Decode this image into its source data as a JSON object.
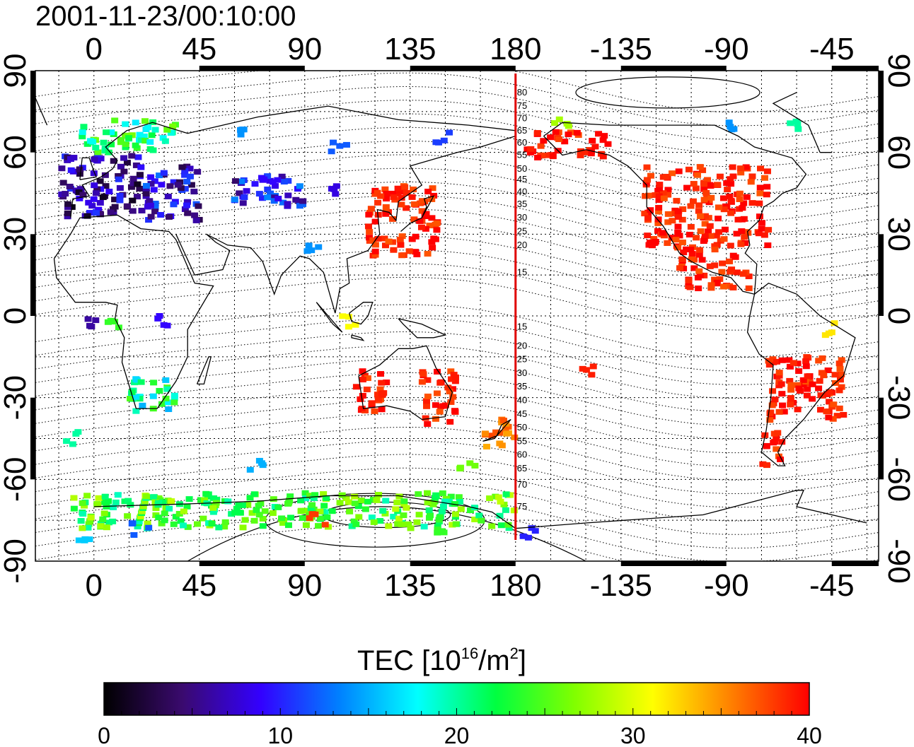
{
  "title": "2001-11-23/00:10:00",
  "map": {
    "lon_ticks_top": [
      "0",
      "45",
      "90",
      "135",
      "180",
      "-135",
      "-90",
      "-45"
    ],
    "lon_ticks_bottom": [
      "0",
      "45",
      "90",
      "135",
      "180",
      "-135",
      "-90",
      "-45"
    ],
    "lat_ticks_left": [
      "90",
      "60",
      "30",
      "0",
      "-30",
      "-60",
      "-90"
    ],
    "lat_ticks_right": [
      "90",
      "60",
      "30",
      "0",
      "-30",
      "-60",
      "-90"
    ],
    "meridian_line": {
      "longitude": 180,
      "color": "#e00000"
    },
    "contour_labels_north": [
      "80",
      "75",
      "70",
      "65",
      "60",
      "55",
      "50",
      "45",
      "40",
      "35",
      "30",
      "25",
      "20",
      "15"
    ],
    "contour_labels_south": [
      "15",
      "20",
      "25",
      "30",
      "35",
      "40",
      "45",
      "50",
      "55",
      "60",
      "65",
      "70",
      "75"
    ]
  },
  "colorbar": {
    "title_main": "TEC  [10",
    "title_sup1": "16",
    "title_mid": "/m",
    "title_sup2": "2",
    "title_end": "]",
    "min": 0,
    "max": 40,
    "tick_labels": [
      "0",
      "10",
      "20",
      "30",
      "40"
    ],
    "stops": [
      "#000000",
      "#3a0a6e",
      "#3300ff",
      "#0080ff",
      "#00ffff",
      "#00ff40",
      "#80ff00",
      "#ffff00",
      "#ff8000",
      "#ff0000"
    ]
  },
  "tec_regions": [
    {
      "name": "europe-west",
      "lon": [
        -14,
        20
      ],
      "lat": [
        36,
        60
      ],
      "value": 6
    },
    {
      "name": "europe-north",
      "lon": [
        -5,
        35
      ],
      "lat": [
        60,
        72
      ],
      "value": 22
    },
    {
      "name": "eastern-europe",
      "lon": [
        20,
        45
      ],
      "lat": [
        35,
        55
      ],
      "value": 8
    },
    {
      "name": "central-asia",
      "lon": [
        60,
        90
      ],
      "lat": [
        40,
        52
      ],
      "value": 9
    },
    {
      "name": "japan-china",
      "lon": [
        117,
        147
      ],
      "lat": [
        22,
        48
      ],
      "value": 39
    },
    {
      "name": "north-america",
      "lon": [
        -125,
        -72
      ],
      "lat": [
        25,
        55
      ],
      "value": 39
    },
    {
      "name": "alaska",
      "lon": [
        -175,
        -140
      ],
      "lat": [
        58,
        68
      ],
      "value": 39
    },
    {
      "name": "central-america",
      "lon": [
        -110,
        -80
      ],
      "lat": [
        10,
        25
      ],
      "value": 39
    },
    {
      "name": "australia-west",
      "lon": [
        112,
        125
      ],
      "lat": [
        -35,
        -20
      ],
      "value": 39
    },
    {
      "name": "australia-east",
      "lon": [
        140,
        155
      ],
      "lat": [
        -40,
        -20
      ],
      "value": 39
    },
    {
      "name": "new-zealand",
      "lon": [
        165,
        180
      ],
      "lat": [
        -48,
        -38
      ],
      "value": 36
    },
    {
      "name": "south-america",
      "lon": [
        -72,
        -40
      ],
      "lat": [
        -40,
        -15
      ],
      "value": 39
    },
    {
      "name": "patagonia",
      "lon": [
        -75,
        -65
      ],
      "lat": [
        -55,
        -42
      ],
      "value": 39
    },
    {
      "name": "south-africa",
      "lon": [
        15,
        35
      ],
      "lat": [
        -35,
        -22
      ],
      "value": 20
    },
    {
      "name": "antarctic-ring",
      "lon": [
        -10,
        180
      ],
      "lat": [
        -78,
        -65
      ],
      "value": 24
    }
  ]
}
